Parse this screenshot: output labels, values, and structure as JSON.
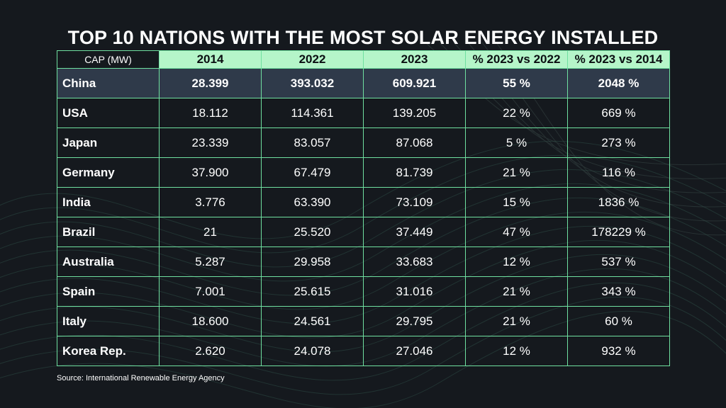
{
  "title": "TOP 10 NATIONS WITH THE MOST SOLAR ENERGY INSTALLED",
  "source": "Source: International Renewable Energy Agency",
  "colors": {
    "background": "#15191e",
    "header_fill": "#b5f5c9",
    "highlight_row": "#2f3a4a",
    "grid_line": "#6fe0a0"
  },
  "chart_data": {
    "type": "table",
    "title": "TOP 10 NATIONS WITH THE MOST SOLAR ENERGY INSTALLED",
    "columns": [
      "CAP (MW)",
      "2014",
      "2022",
      "2023",
      "% 2023 vs 2022",
      "% 2023 vs 2014"
    ],
    "rows": [
      [
        "China",
        "28.399",
        "393.032",
        "609.921",
        "55 %",
        "2048 %"
      ],
      [
        "USA",
        "18.112",
        "114.361",
        "139.205",
        "22 %",
        "669 %"
      ],
      [
        "Japan",
        "23.339",
        "83.057",
        "87.068",
        "5 %",
        "273 %"
      ],
      [
        "Germany",
        "37.900",
        "67.479",
        "81.739",
        "21 %",
        "116 %"
      ],
      [
        "India",
        "3.776",
        "63.390",
        "73.109",
        "15 %",
        "1836 %"
      ],
      [
        "Brazil",
        "21",
        "25.520",
        "37.449",
        "47 %",
        "178229 %"
      ],
      [
        "Australia",
        "5.287",
        "29.958",
        "33.683",
        "12 %",
        "537 %"
      ],
      [
        "Spain",
        "7.001",
        "25.615",
        "31.016",
        "21 %",
        "343 %"
      ],
      [
        "Italy",
        "18.600",
        "24.561",
        "29.795",
        "21 %",
        "60 %"
      ],
      [
        "Korea Rep.",
        "2.620",
        "24.078",
        "27.046",
        "12 %",
        "932 %"
      ]
    ],
    "highlighted_row": "China",
    "source": "Source: International Renewable Energy Agency"
  }
}
